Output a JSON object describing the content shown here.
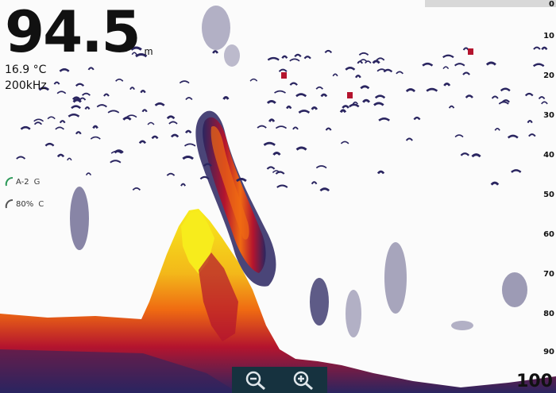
{
  "sonar": {
    "depth_value": "94.5",
    "depth_unit": "m",
    "temperature": "16.9 °C",
    "frequency": "200kHz",
    "gain": {
      "value": "A-2",
      "mode": "G",
      "level": 0.55
    },
    "color": {
      "value": "80%",
      "mode": "C",
      "level": 0.8
    },
    "range": "100"
  },
  "depth_scale": [
    "0",
    "10",
    "20",
    "30",
    "40",
    "50",
    "60",
    "70",
    "80",
    "90"
  ],
  "colors": {
    "background": "#fbfbfb",
    "weak_return": "#2a2560",
    "medium_return": "#b4142e",
    "strong_return": "#ef6a12",
    "max_return": "#f7ec1c",
    "toolbar": "#16323f",
    "toolbar_icon": "#dfe6ea"
  },
  "icons": {
    "zoom_out": "zoom-out-icon",
    "zoom_in": "zoom-in-icon"
  }
}
